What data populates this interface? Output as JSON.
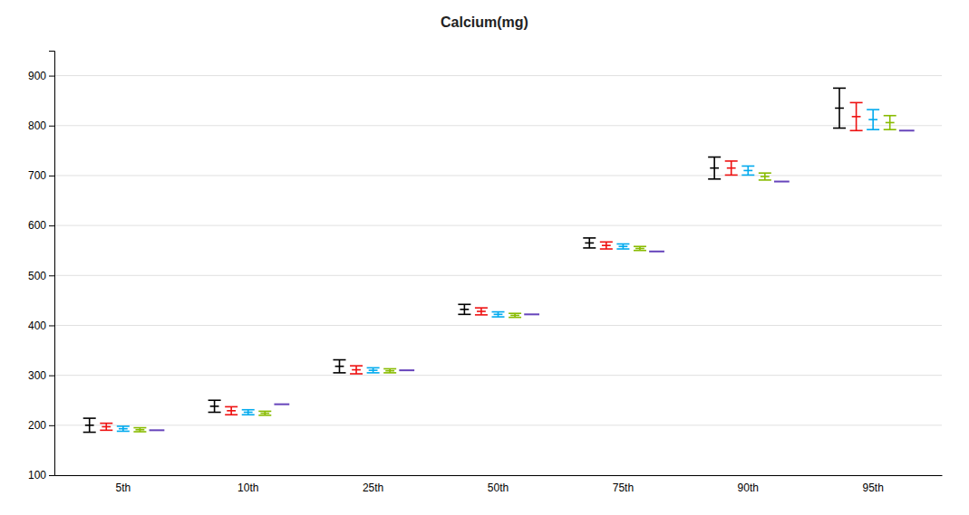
{
  "chart_data": {
    "type": "errorbar",
    "title": "Calcium(mg)",
    "categories": [
      "5th",
      "10th",
      "25th",
      "50th",
      "75th",
      "90th",
      "95th"
    ],
    "series": [
      {
        "color": "#000000",
        "values": [
          200,
          238,
          318,
          432,
          565,
          715,
          835
        ],
        "errors": [
          14,
          12,
          13,
          10,
          10,
          22,
          40
        ]
      },
      {
        "color": "#EE1111",
        "values": [
          197,
          229,
          311,
          428,
          560,
          715,
          818
        ],
        "errors": [
          7,
          8,
          8,
          7,
          7,
          14,
          28
        ]
      },
      {
        "color": "#00AAEE",
        "values": [
          193,
          226,
          310,
          422,
          558,
          710,
          812
        ],
        "errors": [
          5,
          5,
          5,
          5,
          5,
          9,
          20
        ]
      },
      {
        "color": "#88BB00",
        "values": [
          191,
          224,
          309,
          420,
          554,
          698,
          806
        ],
        "errors": [
          4,
          4,
          4,
          4,
          4,
          7,
          14
        ]
      },
      {
        "color": "#6644BB",
        "values": [
          190,
          242,
          310,
          422,
          548,
          688,
          790
        ],
        "errors": [
          0,
          0,
          0,
          0,
          0,
          0,
          0
        ]
      }
    ],
    "ylim": [
      100,
      950
    ],
    "yticks": [
      100,
      200,
      300,
      400,
      500,
      600,
      700,
      800,
      900
    ],
    "grid": true
  }
}
